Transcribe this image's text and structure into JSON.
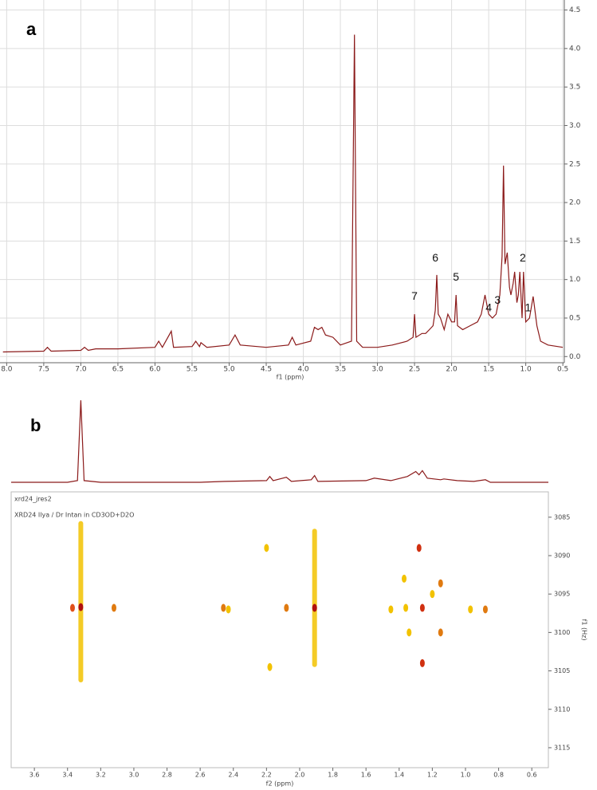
{
  "chart_data": [
    {
      "type": "line",
      "panel": "a",
      "xlabel": "f1 (ppm)",
      "color": "#8b1a1a",
      "grid": true,
      "xlim": [
        8.09,
        0.48
      ],
      "ylim": [
        -0.08,
        4.63
      ],
      "xticks": [
        {
          "value": 8,
          "label": "8.0"
        },
        7.5,
        {
          "value": 7,
          "label": "7.0"
        },
        6.5,
        {
          "value": 6,
          "label": "6.0"
        },
        5.5,
        {
          "value": 5,
          "label": "5.0"
        },
        4.5,
        {
          "value": 4,
          "label": "4.0"
        },
        3.5,
        {
          "value": 3,
          "label": "3.0"
        },
        2.5,
        {
          "value": 2,
          "label": "2.0"
        },
        1.5,
        {
          "value": 1,
          "label": "1.0"
        },
        0.5
      ],
      "yticks": [
        {
          "value": 0,
          "label": "0.0"
        },
        0.5,
        {
          "value": 1,
          "label": "1.0"
        },
        1.5,
        {
          "value": 2,
          "label": "2.0"
        },
        2.5,
        {
          "value": 3,
          "label": "3.0"
        },
        3.5,
        {
          "value": 4,
          "label": "4.0"
        },
        4.5
      ],
      "x": [
        8.05,
        7.5,
        7.45,
        7.4,
        7.0,
        6.95,
        6.9,
        6.8,
        6.5,
        6.0,
        5.95,
        5.9,
        5.78,
        5.75,
        5.5,
        5.45,
        5.4,
        5.38,
        5.3,
        5.0,
        4.92,
        4.85,
        4.5,
        4.2,
        4.15,
        4.1,
        3.9,
        3.85,
        3.8,
        3.75,
        3.7,
        3.6,
        3.5,
        3.35,
        3.31,
        3.28,
        3.2,
        3.0,
        2.8,
        2.6,
        2.52,
        2.5,
        2.48,
        2.4,
        2.35,
        2.3,
        2.25,
        2.22,
        2.2,
        2.18,
        2.15,
        2.1,
        2.05,
        2.0,
        1.96,
        1.94,
        1.92,
        1.85,
        1.75,
        1.65,
        1.6,
        1.55,
        1.5,
        1.45,
        1.4,
        1.35,
        1.32,
        1.3,
        1.28,
        1.25,
        1.22,
        1.2,
        1.17,
        1.15,
        1.12,
        1.1,
        1.08,
        1.05,
        1.03,
        1.0,
        0.95,
        0.9,
        0.85,
        0.8,
        0.7,
        0.5
      ],
      "values": [
        0.06,
        0.07,
        0.12,
        0.07,
        0.08,
        0.12,
        0.08,
        0.1,
        0.1,
        0.12,
        0.2,
        0.12,
        0.33,
        0.12,
        0.13,
        0.2,
        0.13,
        0.18,
        0.12,
        0.15,
        0.28,
        0.15,
        0.12,
        0.15,
        0.25,
        0.15,
        0.2,
        0.38,
        0.35,
        0.38,
        0.28,
        0.25,
        0.15,
        0.2,
        4.18,
        0.2,
        0.12,
        0.12,
        0.15,
        0.2,
        0.25,
        0.55,
        0.25,
        0.3,
        0.3,
        0.35,
        0.4,
        0.6,
        1.06,
        0.55,
        0.5,
        0.35,
        0.55,
        0.45,
        0.45,
        0.8,
        0.4,
        0.35,
        0.4,
        0.45,
        0.55,
        0.8,
        0.55,
        0.5,
        0.55,
        0.8,
        1.3,
        2.48,
        1.2,
        1.35,
        0.9,
        0.8,
        0.95,
        1.1,
        0.7,
        0.8,
        1.1,
        0.5,
        1.1,
        0.45,
        0.5,
        0.78,
        0.4,
        0.2,
        0.15,
        0.12
      ],
      "annotations": [
        {
          "text": "1",
          "x": 0.97,
          "y": 0.5
        },
        {
          "text": "2",
          "x": 1.04,
          "y": 1.15
        },
        {
          "text": "3",
          "x": 1.38,
          "y": 0.6
        },
        {
          "text": "4",
          "x": 1.5,
          "y": 0.5
        },
        {
          "text": "5",
          "x": 1.94,
          "y": 0.9
        },
        {
          "text": "6",
          "x": 2.22,
          "y": 1.15
        },
        {
          "text": "7",
          "x": 2.5,
          "y": 0.65
        }
      ]
    },
    {
      "type": "contour",
      "panel": "b",
      "title": "xrd24_jres2",
      "subtitle": "XRD24 Ilya / Dr Intan in CD3OD+D2O",
      "xlabel": "f2 (ppm)",
      "ylabel": "f1 (Hz)",
      "xlim": [
        3.74,
        0.5
      ],
      "ylim": [
        3081.7,
        3117.6
      ],
      "xticks": [
        3.6,
        3.4,
        3.2,
        {
          "value": 3,
          "label": "3.0"
        },
        2.8,
        2.6,
        2.4,
        2.2,
        {
          "value": 2,
          "label": "2.0"
        },
        1.8,
        1.6,
        1.4,
        1.2,
        {
          "value": 1,
          "label": "1.0"
        },
        0.8,
        0.6
      ],
      "yticks": [
        3085,
        3090,
        3095,
        3100,
        3105,
        3110,
        3115
      ],
      "projection": {
        "color": "#8b1a1a",
        "ylim": [
          0,
          1.02
        ],
        "x": [
          3.74,
          3.4,
          3.34,
          3.32,
          3.3,
          3.2,
          2.6,
          2.45,
          2.2,
          2.18,
          2.16,
          2.08,
          2.05,
          1.93,
          1.91,
          1.89,
          1.6,
          1.55,
          1.45,
          1.35,
          1.3,
          1.28,
          1.26,
          1.23,
          1.15,
          1.13,
          1.05,
          0.95,
          0.88,
          0.85,
          0.5
        ],
        "values": [
          0.01,
          0.01,
          0.03,
          1.0,
          0.03,
          0.01,
          0.01,
          0.02,
          0.03,
          0.08,
          0.03,
          0.07,
          0.02,
          0.04,
          0.09,
          0.02,
          0.03,
          0.06,
          0.03,
          0.08,
          0.14,
          0.1,
          0.15,
          0.06,
          0.04,
          0.05,
          0.03,
          0.02,
          0.04,
          0.01,
          0.01
        ]
      },
      "streaks": {
        "x": [
          3.32,
          1.91
        ],
        "y_from": [
          3085.5,
          3086.5
        ],
        "y_to": [
          3106.5,
          3104.5
        ],
        "color": "#f2c200"
      },
      "peaks": {
        "x": [
          3.37,
          3.32,
          3.12,
          2.46,
          2.43,
          2.2,
          2.18,
          2.08,
          1.91,
          1.45,
          1.37,
          1.36,
          1.34,
          1.28,
          1.26,
          1.26,
          1.2,
          1.15,
          1.15,
          0.97,
          0.88
        ],
        "y": [
          3096.8,
          3096.7,
          3096.8,
          3096.8,
          3097,
          3089,
          3104.5,
          3096.8,
          3096.8,
          3097,
          3093,
          3096.8,
          3100,
          3089,
          3096.8,
          3104,
          3095,
          3093.6,
          3100,
          3097,
          3097
        ],
        "colors": [
          "#e0501a",
          "#b01010",
          "#e07a10",
          "#e07a10",
          "#f2c200",
          "#f2c200",
          "#f2c200",
          "#e07a10",
          "#b01010",
          "#f2c200",
          "#f2c200",
          "#f2c200",
          "#f2c200",
          "#d03010",
          "#d03010",
          "#d03010",
          "#f2c200",
          "#e07a10",
          "#e07a10",
          "#f2c200",
          "#e07a10"
        ]
      }
    }
  ]
}
